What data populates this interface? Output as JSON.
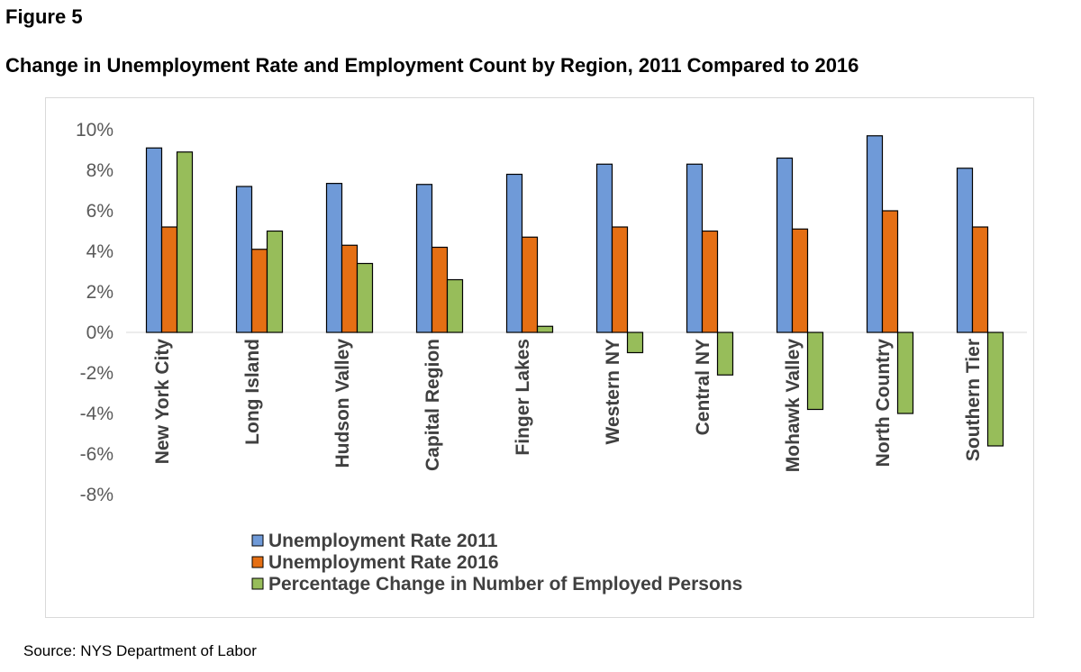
{
  "figure_label": "Figure 5",
  "figure_title": "Change in Unemployment Rate and Employment Count by Region, 2011 Compared to 2016",
  "source": "Source:  NYS Department of Labor",
  "chart_data": {
    "type": "bar",
    "title": "",
    "xlabel": "",
    "ylabel": "",
    "ylim": [
      -8,
      10
    ],
    "yticks": [
      10,
      8,
      6,
      4,
      2,
      0,
      -2,
      -4,
      -6,
      -8
    ],
    "ytick_labels": [
      "10%",
      "8%",
      "6%",
      "4%",
      "2%",
      "0%",
      "-2%",
      "-4%",
      "-6%",
      "-8%"
    ],
    "grid": false,
    "legend_position": "bottom",
    "categories": [
      "New York City",
      "Long Island",
      "Hudson Valley",
      "Capital Region",
      "Finger Lakes",
      "Western NY",
      "Central NY",
      "Mohawk Valley",
      "North Country",
      "Southern Tier"
    ],
    "series": [
      {
        "name": "Unemployment Rate 2011",
        "color": "#6f9ad8",
        "values": [
          9.1,
          7.2,
          7.35,
          7.3,
          7.8,
          8.3,
          8.3,
          8.6,
          9.7,
          8.1
        ]
      },
      {
        "name": "Unemployment Rate 2016",
        "color": "#e56f14",
        "values": [
          5.2,
          4.1,
          4.3,
          4.2,
          4.7,
          5.2,
          5.0,
          5.1,
          6.0,
          5.2
        ]
      },
      {
        "name": "Percentage Change in Number of Employed Persons",
        "color": "#97bd5a",
        "values": [
          8.9,
          5.0,
          3.4,
          2.6,
          0.3,
          -1.0,
          -2.1,
          -3.8,
          -4.0,
          -5.6
        ]
      }
    ]
  }
}
